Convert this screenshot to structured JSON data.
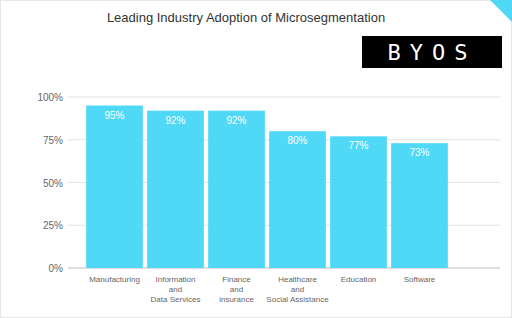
{
  "chart_data": {
    "type": "bar",
    "title": "Leading Industry Adoption of Microsegmentation",
    "categories": [
      "Manufacturing",
      "Information and Data Services",
      "Finance and insurance",
      "Healthcare and Social Assistance",
      "Education",
      "Software"
    ],
    "values": [
      95,
      92,
      92,
      80,
      77,
      73
    ],
    "value_labels": [
      "95%",
      "92%",
      "92%",
      "80%",
      "77%",
      "73%"
    ],
    "color": "#50d8f7",
    "ylim": [
      0,
      100
    ],
    "yticks": [
      {
        "value": 0,
        "label": "0%"
      },
      {
        "value": 25,
        "label": "25%"
      },
      {
        "value": 50,
        "label": "50%"
      },
      {
        "value": 75,
        "label": "75%"
      },
      {
        "value": 100,
        "label": "100%"
      }
    ],
    "grid": true,
    "data_labels": true,
    "annotations": [
      {
        "text": "BYOS"
      }
    ]
  }
}
